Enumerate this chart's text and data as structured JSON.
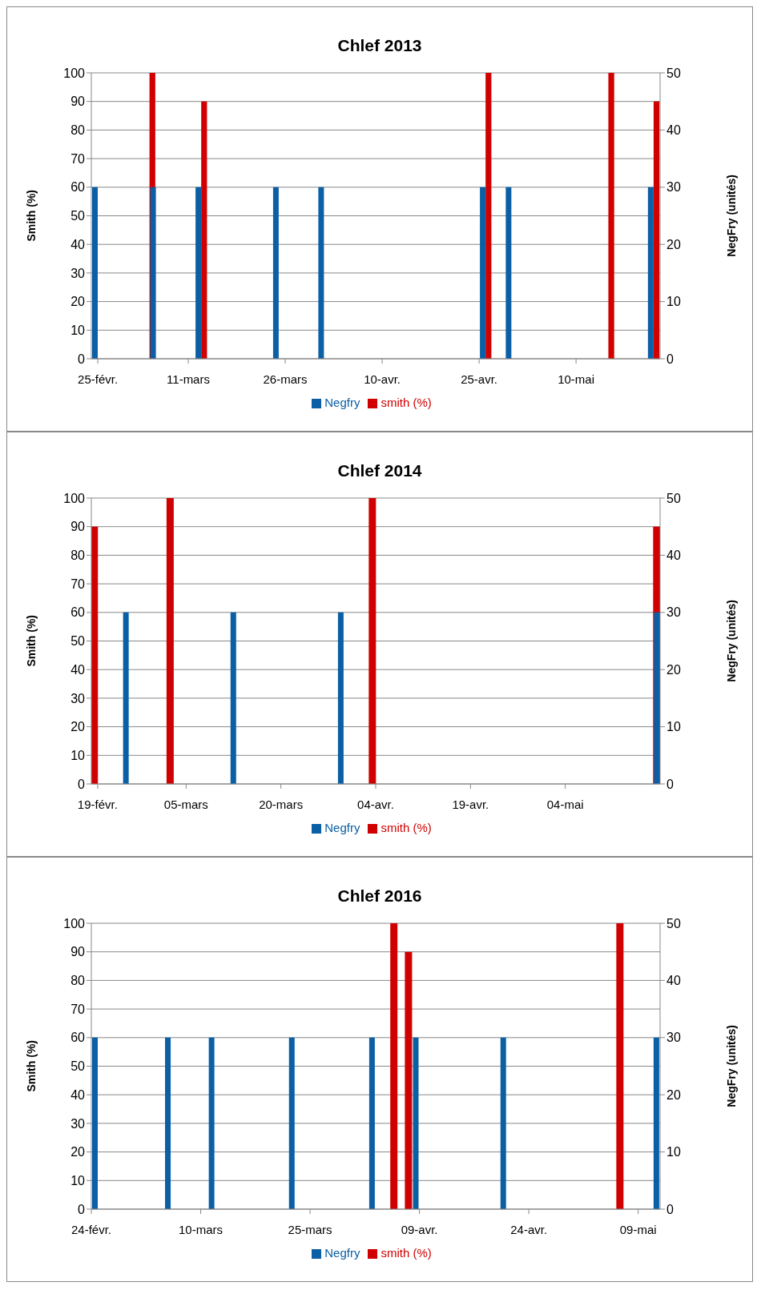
{
  "chart_data": [
    {
      "type": "bar",
      "title": "Chlef 2013",
      "ylabel": "Smith (%)",
      "y2label": "NegFry (unités)",
      "series": [
        {
          "name": "smith (%)",
          "color": "#d00000",
          "x": [
            "2013-03-05",
            "2013-03-13",
            "2013-04-26",
            "2013-05-15",
            "2013-05-22"
          ],
          "values": [
            100,
            90,
            100,
            100,
            90
          ]
        },
        {
          "name": "Negfry",
          "color": "#0b5fa5",
          "axis": "y2",
          "x": [
            "2013-02-24",
            "2013-03-05",
            "2013-03-12",
            "2013-03-24",
            "2013-03-31",
            "2013-04-25",
            "2013-04-29",
            "2013-05-21"
          ],
          "values": [
            30,
            30,
            30,
            30,
            30,
            30,
            30,
            30
          ]
        }
      ],
      "xlim": [
        "2013-02-24",
        "2013-05-23"
      ],
      "xticks": [
        {
          "value": "2013-02-25",
          "label": "25-févr."
        },
        {
          "value": "2013-03-11",
          "label": "11-mars"
        },
        {
          "value": "2013-03-26",
          "label": "26-mars"
        },
        {
          "value": "2013-04-10",
          "label": "10-avr."
        },
        {
          "value": "2013-04-25",
          "label": "25-avr."
        },
        {
          "value": "2013-05-10",
          "label": "10-mai"
        }
      ],
      "ylim": [
        0,
        100
      ],
      "yticks": [
        0,
        10,
        20,
        30,
        40,
        50,
        60,
        70,
        80,
        90,
        100
      ],
      "y2lim": [
        0,
        50
      ],
      "y2ticks": [
        0,
        10,
        20,
        30,
        40,
        50
      ],
      "grid": "y",
      "legend": "bottom"
    },
    {
      "type": "bar",
      "title": "Chlef 2014",
      "ylabel": "Smith (%)",
      "y2label": "NegFry (unités)",
      "series": [
        {
          "name": "smith (%)",
          "color": "#d00000",
          "x": [
            "2014-02-18",
            "2014-03-02",
            "2014-04-03",
            "2014-05-18"
          ],
          "values": [
            90,
            100,
            100,
            90
          ]
        },
        {
          "name": "Negfry",
          "color": "#0b5fa5",
          "axis": "y2",
          "x": [
            "2014-02-23",
            "2014-03-12",
            "2014-03-29",
            "2014-05-18"
          ],
          "values": [
            30,
            30,
            30,
            30
          ]
        }
      ],
      "xlim": [
        "2014-02-18",
        "2014-05-19"
      ],
      "xticks": [
        {
          "value": "2014-02-19",
          "label": "19-févr."
        },
        {
          "value": "2014-03-05",
          "label": "05-mars"
        },
        {
          "value": "2014-03-20",
          "label": "20-mars"
        },
        {
          "value": "2014-04-04",
          "label": "04-avr."
        },
        {
          "value": "2014-04-19",
          "label": "19-avr."
        },
        {
          "value": "2014-05-04",
          "label": "04-mai"
        }
      ],
      "ylim": [
        0,
        100
      ],
      "yticks": [
        0,
        10,
        20,
        30,
        40,
        50,
        60,
        70,
        80,
        90,
        100
      ],
      "y2lim": [
        0,
        50
      ],
      "y2ticks": [
        0,
        10,
        20,
        30,
        40,
        50
      ],
      "grid": "y",
      "legend": "bottom"
    },
    {
      "type": "bar",
      "title": "Chlef 2016",
      "ylabel": "Smith (%)",
      "y2label": "NegFry (unités)",
      "series": [
        {
          "name": "smith (%)",
          "color": "#d00000",
          "x": [
            "2016-04-05",
            "2016-04-07",
            "2016-05-06"
          ],
          "values": [
            100,
            90,
            100
          ]
        },
        {
          "name": "Negfry",
          "color": "#0b5fa5",
          "axis": "y2",
          "x": [
            "2016-02-24",
            "2016-03-05",
            "2016-03-11",
            "2016-03-22",
            "2016-04-02",
            "2016-04-08",
            "2016-04-20",
            "2016-05-11"
          ],
          "values": [
            30,
            30,
            30,
            30,
            30,
            30,
            30,
            30
          ]
        }
      ],
      "xlim": [
        "2016-02-24",
        "2016-05-12"
      ],
      "xticks": [
        {
          "value": "2016-02-24",
          "label": "24-févr."
        },
        {
          "value": "2016-03-10",
          "label": "10-mars"
        },
        {
          "value": "2016-03-25",
          "label": "25-mars"
        },
        {
          "value": "2016-04-09",
          "label": "09-avr."
        },
        {
          "value": "2016-04-24",
          "label": "24-avr."
        },
        {
          "value": "2016-05-09",
          "label": "09-mai"
        }
      ],
      "ylim": [
        0,
        100
      ],
      "yticks": [
        0,
        10,
        20,
        30,
        40,
        50,
        60,
        70,
        80,
        90,
        100
      ],
      "y2lim": [
        0,
        50
      ],
      "y2ticks": [
        0,
        10,
        20,
        30,
        40,
        50
      ],
      "grid": "y",
      "legend": "bottom"
    }
  ]
}
